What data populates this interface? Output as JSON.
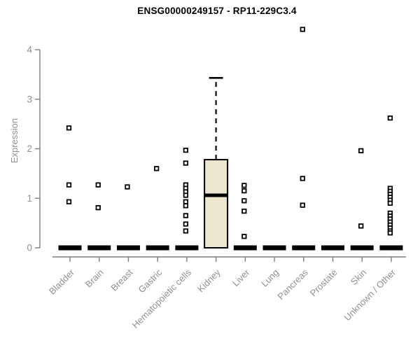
{
  "header": {
    "title": "ENSG00000249157 - RP11-229C3.4"
  },
  "chart_data": {
    "type": "boxplot",
    "title": "ENSG00000249157 - RP11-229C3.4",
    "xlabel": "",
    "ylabel": "Expression",
    "ylim": [
      0,
      4.5
    ],
    "yticks": [
      0,
      1,
      2,
      3,
      4
    ],
    "grid": false,
    "legend": null,
    "categories": [
      "Bladder",
      "Brain",
      "Breast",
      "Gastric",
      "Hematopoietic cells",
      "Kidney",
      "Liver",
      "Lung",
      "Pancreas",
      "Prostate",
      "Skin",
      "Unknown / Other"
    ],
    "series": [
      {
        "category": "Bladder",
        "min": 0,
        "q1": 0,
        "median": 0,
        "q3": 0,
        "max": 0,
        "outliers": [
          2.42,
          1.27,
          0.93
        ]
      },
      {
        "category": "Brain",
        "min": 0,
        "q1": 0,
        "median": 0,
        "q3": 0,
        "max": 0,
        "outliers": [
          1.27,
          0.81
        ]
      },
      {
        "category": "Breast",
        "min": 0,
        "q1": 0,
        "median": 0,
        "q3": 0,
        "max": 0,
        "outliers": [
          1.23
        ]
      },
      {
        "category": "Gastric",
        "min": 0,
        "q1": 0,
        "median": 0,
        "q3": 0,
        "max": 0,
        "outliers": [
          1.6
        ]
      },
      {
        "category": "Hematopoietic cells",
        "min": 0,
        "q1": 0,
        "median": 0,
        "q3": 0,
        "max": 0,
        "outliers": [
          1.97,
          1.71,
          1.27,
          1.2,
          1.13,
          1.06,
          0.93,
          0.85,
          0.65,
          0.48,
          0.34
        ]
      },
      {
        "category": "Kidney",
        "min": 0,
        "q1": 0,
        "median": 1.06,
        "q3": 1.78,
        "max": 3.43,
        "outliers": []
      },
      {
        "category": "Liver",
        "min": 0,
        "q1": 0,
        "median": 0,
        "q3": 0,
        "max": 0,
        "outliers": [
          1.26,
          1.15,
          0.95,
          0.74,
          0.23
        ]
      },
      {
        "category": "Lung",
        "min": 0,
        "q1": 0,
        "median": 0,
        "q3": 0,
        "max": 0,
        "outliers": []
      },
      {
        "category": "Pancreas",
        "min": 0,
        "q1": 0,
        "median": 0,
        "q3": 0,
        "max": 0,
        "outliers": [
          4.41,
          1.4,
          0.86
        ]
      },
      {
        "category": "Prostate",
        "min": 0,
        "q1": 0,
        "median": 0,
        "q3": 0,
        "max": 0,
        "outliers": []
      },
      {
        "category": "Skin",
        "min": 0,
        "q1": 0,
        "median": 0,
        "q3": 0,
        "max": 0,
        "outliers": [
          1.96,
          0.44
        ]
      },
      {
        "category": "Unknown / Other",
        "min": 0,
        "q1": 0,
        "median": 0,
        "q3": 0,
        "max": 0,
        "outliers": [
          2.62,
          1.2,
          1.14,
          1.08,
          1.02,
          0.96,
          0.9,
          0.7,
          0.64,
          0.58,
          0.52,
          0.46,
          0.4,
          0.34,
          0.3
        ]
      }
    ],
    "colors": {
      "box_fill": "#EDE7D0",
      "box_stroke": "#000000",
      "median": "#000000",
      "whisker": "#000000",
      "outlier_stroke": "#000000",
      "outlier_fill": "#ffffff",
      "axis_line": "#7d7d7d",
      "tick_label": "#919191",
      "title": "#000000",
      "background": "#ffffff"
    }
  }
}
